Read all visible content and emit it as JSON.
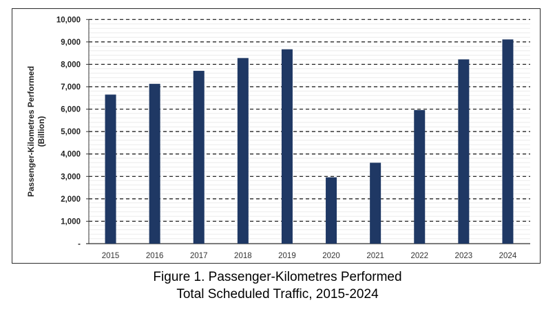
{
  "chart_data": {
    "type": "bar",
    "title": "",
    "xlabel": "",
    "ylabel": "Passenger-Kilometres Performed",
    "ylabel_unit": "(Billion)",
    "categories": [
      "2015",
      "2016",
      "2017",
      "2018",
      "2019",
      "2020",
      "2021",
      "2022",
      "2023",
      "2024"
    ],
    "values": [
      6650,
      7130,
      7710,
      8280,
      8670,
      2960,
      3610,
      5960,
      8220,
      9110
    ],
    "ylim": [
      0,
      10000
    ],
    "yticks": [
      0,
      1000,
      2000,
      3000,
      4000,
      5000,
      6000,
      7000,
      8000,
      9000,
      10000
    ],
    "ytick_labels": [
      "-",
      "1,000",
      "2,000",
      "3,000",
      "4,000",
      "5,000",
      "6,000",
      "7,000",
      "8,000",
      "9,000",
      "10,000"
    ],
    "grid": "horizontal dashed",
    "legend": "none",
    "bar_color": "#1f3864"
  },
  "caption": {
    "line1": "Figure 1. Passenger-Kilometres Performed",
    "line2": "Total Scheduled Traffic, 2015-2024"
  }
}
